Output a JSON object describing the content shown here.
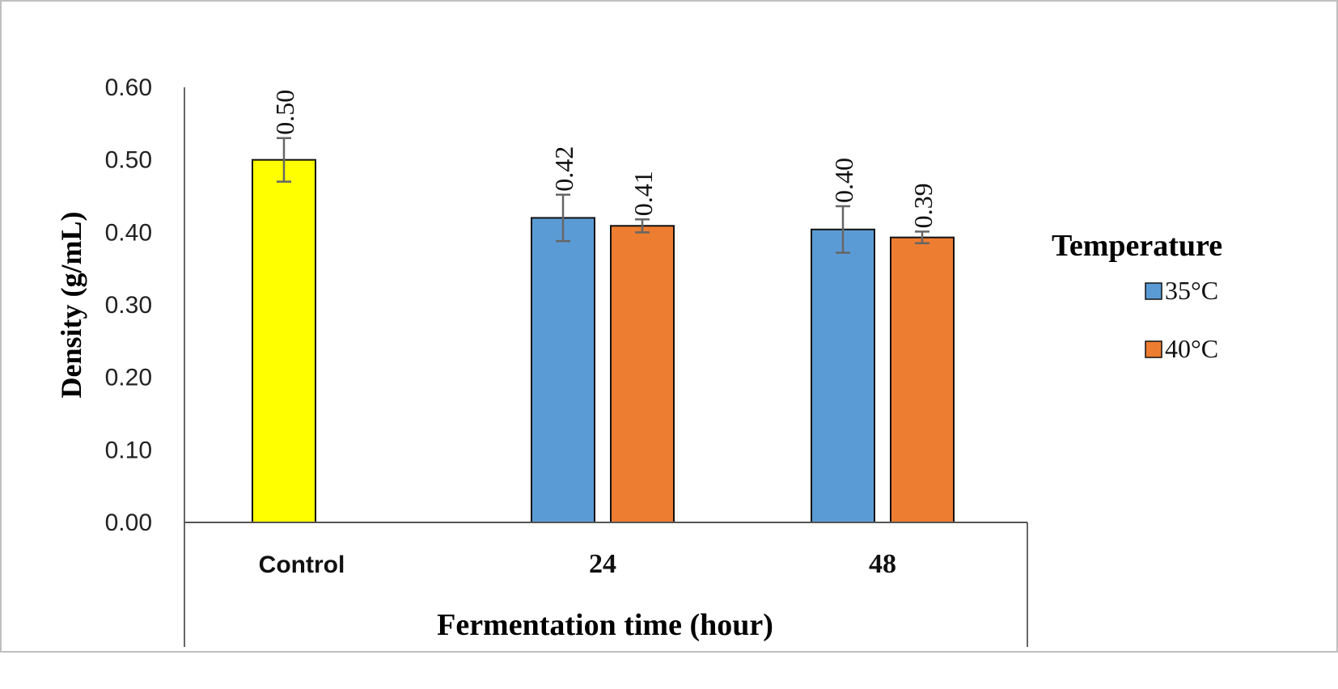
{
  "chart_data": {
    "type": "bar",
    "title": "",
    "xlabel": "Fermentation time (hour)",
    "ylabel": "Density (g/mL)",
    "ylim": [
      0,
      0.6
    ],
    "yticks": [
      "0.00",
      "0.10",
      "0.20",
      "0.30",
      "0.40",
      "0.50",
      "0.60"
    ],
    "categories": [
      "Control",
      "24",
      "48"
    ],
    "legend": {
      "title": "Temperature",
      "position": "right"
    },
    "series": [
      {
        "name": "Control",
        "color": "#ffff00",
        "values": [
          0.5,
          null,
          null
        ],
        "errors": [
          0.03,
          null,
          null
        ],
        "labels": [
          "0.50",
          null,
          null
        ],
        "in_legend": false
      },
      {
        "name": "35°C",
        "color": "#5b9bd5",
        "values": [
          null,
          0.42,
          0.404
        ],
        "errors": [
          null,
          0.032,
          0.032
        ],
        "labels": [
          null,
          "0.42",
          "0.40"
        ],
        "in_legend": true
      },
      {
        "name": "40°C",
        "color": "#ed7d31",
        "values": [
          null,
          0.409,
          0.393
        ],
        "errors": [
          null,
          0.009,
          0.008
        ],
        "labels": [
          null,
          "0.41",
          "0.39"
        ],
        "in_legend": true
      }
    ]
  }
}
